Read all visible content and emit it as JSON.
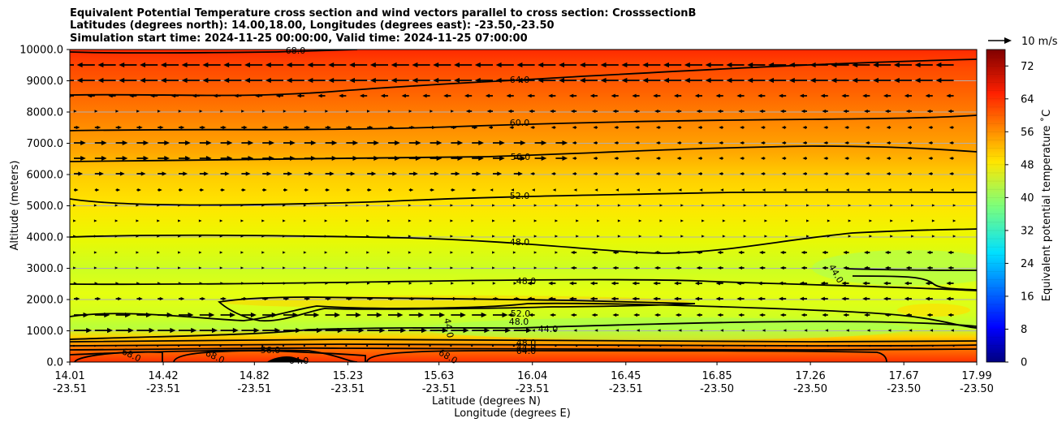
{
  "titles": {
    "line1": "Equivalent Potential Temperature cross section and wind vectors parallel to cross section: CrosssectionB",
    "line2": "Latitudes (degrees north): 14.00,18.00, Longitudes (degrees east): -23.50,-23.50",
    "line3": "Simulation start time: 2024-11-25 00:00:00, Valid time: 2024-11-25 07:00:00"
  },
  "quiver_key": {
    "label": "10 m/s"
  },
  "chart_data": {
    "type": "heatmap",
    "ylabel": "Altitude (meters)",
    "xlabel_lines": [
      "Latitude (degrees N)",
      "Longitude (degrees E)"
    ],
    "ylim": [
      0,
      10000
    ],
    "y_ticks": [
      "0.0",
      "1000.0",
      "2000.0",
      "3000.0",
      "4000.0",
      "5000.0",
      "6000.0",
      "7000.0",
      "8000.0",
      "9000.0",
      "10000.0"
    ],
    "x_ticks": [
      {
        "lat": "14.01",
        "lon": "-23.51"
      },
      {
        "lat": "14.42",
        "lon": "-23.51"
      },
      {
        "lat": "14.82",
        "lon": "-23.51"
      },
      {
        "lat": "15.23",
        "lon": "-23.51"
      },
      {
        "lat": "15.63",
        "lon": "-23.51"
      },
      {
        "lat": "16.04",
        "lon": "-23.51"
      },
      {
        "lat": "16.45",
        "lon": "-23.51"
      },
      {
        "lat": "16.85",
        "lon": "-23.50"
      },
      {
        "lat": "17.26",
        "lon": "-23.50"
      },
      {
        "lat": "17.67",
        "lon": "-23.50"
      },
      {
        "lat": "17.99",
        "lon": "-23.50"
      }
    ],
    "colorbar": {
      "label": "Equivalent potential temperature $^\\circ$C",
      "label_display": "Equivalent potential temperature ˚C",
      "range": [
        0,
        76
      ],
      "ticks": [
        "0",
        "8",
        "16",
        "24",
        "32",
        "40",
        "48",
        "56",
        "64",
        "72"
      ],
      "colormap": "jet"
    },
    "grid": "horizontal",
    "contour_labels": [
      "68.0",
      "64.0",
      "60.0",
      "56.0",
      "52.0",
      "48.0",
      "48.0",
      "52.0",
      "48.0",
      "44.0",
      "44.0",
      "44.0",
      "68.0",
      "68.0",
      "68.0",
      "56.0",
      "64.0",
      "48.0",
      "64.0",
      "44.0"
    ],
    "contour_levels_drawn": [
      44,
      48,
      52,
      56,
      60,
      64,
      68
    ]
  }
}
